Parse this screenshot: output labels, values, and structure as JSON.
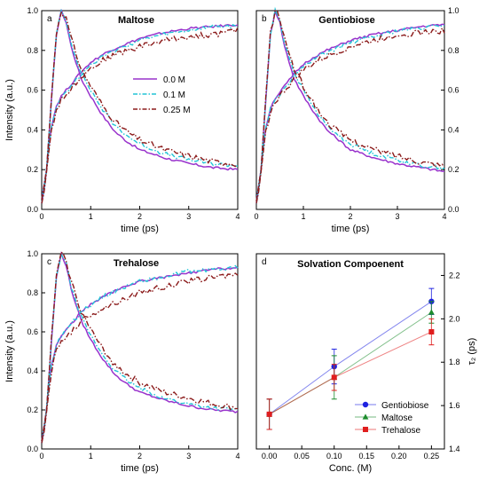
{
  "colors": {
    "m0": "#9932CC",
    "m01": "#22C4D6",
    "m025": "#8B1A1A",
    "gentiobiose": "#1E22E0",
    "maltose": "#1C8C2C",
    "trehalose": "#E01E1E"
  },
  "chart_data": [
    {
      "type": "line",
      "panel_label": "a",
      "title": "Maltose",
      "xlabel": "time (ps)",
      "ylabel": "Intensity (a.u.)",
      "xlim": [
        0,
        4
      ],
      "ylim": [
        0,
        1.0
      ],
      "xticks": [
        "0",
        "1",
        "2",
        "3",
        "4"
      ],
      "yticks": [
        "0.0",
        "0.2",
        "0.4",
        "0.6",
        "0.8",
        "1.0"
      ],
      "y_axis_side": "left",
      "legend": {
        "placement": "center-right",
        "entries": [
          "0.0 M",
          "0.1 M",
          "0.25 M"
        ]
      },
      "series": [
        {
          "name": "0.0 M",
          "style": "solid",
          "color_key": "m0",
          "decay_x": [
            0.0,
            0.1,
            0.2,
            0.3,
            0.4,
            0.5,
            0.6,
            0.8,
            1.0,
            1.25,
            1.5,
            1.75,
            2.0,
            2.5,
            3.0,
            3.5,
            4.0
          ],
          "decay_y": [
            0.05,
            0.2,
            0.55,
            0.88,
            1.0,
            0.94,
            0.82,
            0.66,
            0.57,
            0.47,
            0.39,
            0.34,
            0.3,
            0.26,
            0.23,
            0.21,
            0.2
          ],
          "rise_x": [
            0.0,
            0.05,
            0.1,
            0.15,
            0.2,
            0.3,
            0.4,
            0.5,
            0.6,
            0.8,
            1.0,
            1.25,
            1.5,
            2.0,
            2.5,
            3.0,
            3.5,
            4.0
          ],
          "rise_y": [
            0.03,
            0.1,
            0.2,
            0.32,
            0.42,
            0.52,
            0.57,
            0.6,
            0.63,
            0.69,
            0.74,
            0.78,
            0.81,
            0.86,
            0.89,
            0.91,
            0.92,
            0.93
          ]
        },
        {
          "name": "0.1 M",
          "style": "dashdot",
          "color_key": "m01",
          "decay_x": [
            0.0,
            0.1,
            0.2,
            0.3,
            0.4,
            0.5,
            0.6,
            0.8,
            1.0,
            1.25,
            1.5,
            1.75,
            2.0,
            2.5,
            3.0,
            3.5,
            4.0
          ],
          "decay_y": [
            0.05,
            0.2,
            0.55,
            0.88,
            1.0,
            0.95,
            0.84,
            0.69,
            0.6,
            0.5,
            0.42,
            0.37,
            0.33,
            0.28,
            0.25,
            0.23,
            0.22
          ],
          "rise_x": [
            0.0,
            0.05,
            0.1,
            0.15,
            0.2,
            0.3,
            0.4,
            0.5,
            0.6,
            0.8,
            1.0,
            1.25,
            1.5,
            2.0,
            2.5,
            3.0,
            3.5,
            4.0
          ],
          "rise_y": [
            0.03,
            0.1,
            0.2,
            0.32,
            0.42,
            0.52,
            0.56,
            0.59,
            0.62,
            0.68,
            0.73,
            0.77,
            0.8,
            0.85,
            0.88,
            0.9,
            0.92,
            0.92
          ]
        },
        {
          "name": "0.25 M",
          "style": "dashdot",
          "color_key": "m025",
          "decay_x": [
            0.0,
            0.1,
            0.2,
            0.3,
            0.4,
            0.5,
            0.6,
            0.8,
            1.0,
            1.25,
            1.5,
            1.75,
            2.0,
            2.5,
            3.0,
            3.5,
            4.0
          ],
          "decay_y": [
            0.05,
            0.2,
            0.56,
            0.89,
            1.0,
            0.96,
            0.86,
            0.71,
            0.62,
            0.52,
            0.44,
            0.39,
            0.35,
            0.3,
            0.27,
            0.24,
            0.23
          ],
          "rise_x": [
            0.0,
            0.05,
            0.1,
            0.15,
            0.2,
            0.3,
            0.4,
            0.5,
            0.6,
            0.8,
            1.0,
            1.25,
            1.5,
            2.0,
            2.5,
            3.0,
            3.5,
            4.0
          ],
          "rise_y": [
            0.03,
            0.09,
            0.19,
            0.3,
            0.4,
            0.5,
            0.55,
            0.58,
            0.61,
            0.67,
            0.71,
            0.75,
            0.78,
            0.82,
            0.85,
            0.87,
            0.88,
            0.9
          ]
        }
      ]
    },
    {
      "type": "line",
      "panel_label": "b",
      "title": "Gentiobiose",
      "xlabel": "time (ps)",
      "ylabel": "",
      "xlim": [
        0,
        4
      ],
      "ylim": [
        0,
        1.0
      ],
      "xticks": [
        "0",
        "1",
        "2",
        "3",
        "4"
      ],
      "yticks": [
        "0.0",
        "0.2",
        "0.4",
        "0.6",
        "0.8",
        "1.0"
      ],
      "y_axis_side": "right",
      "series": [
        {
          "name": "0.0 M",
          "style": "solid",
          "color_key": "m0",
          "decay_x": [
            0.0,
            0.1,
            0.2,
            0.3,
            0.4,
            0.5,
            0.6,
            0.8,
            1.0,
            1.25,
            1.5,
            1.75,
            2.0,
            2.5,
            3.0,
            3.5,
            4.0
          ],
          "decay_y": [
            0.04,
            0.2,
            0.55,
            0.88,
            1.0,
            0.94,
            0.82,
            0.66,
            0.57,
            0.48,
            0.4,
            0.35,
            0.3,
            0.26,
            0.23,
            0.21,
            0.19
          ],
          "rise_x": [
            0.0,
            0.05,
            0.1,
            0.15,
            0.2,
            0.3,
            0.4,
            0.5,
            0.6,
            0.8,
            1.0,
            1.25,
            1.5,
            2.0,
            2.5,
            3.0,
            3.5,
            4.0
          ],
          "rise_y": [
            0.03,
            0.1,
            0.2,
            0.31,
            0.41,
            0.51,
            0.56,
            0.59,
            0.62,
            0.68,
            0.73,
            0.77,
            0.8,
            0.85,
            0.88,
            0.9,
            0.92,
            0.93
          ]
        },
        {
          "name": "0.1 M",
          "style": "dashdot",
          "color_key": "m01",
          "decay_x": [
            0.0,
            0.1,
            0.2,
            0.3,
            0.4,
            0.5,
            0.6,
            0.8,
            1.0,
            1.25,
            1.5,
            1.75,
            2.0,
            2.5,
            3.0,
            3.5,
            4.0
          ],
          "decay_y": [
            0.04,
            0.2,
            0.55,
            0.88,
            1.0,
            0.95,
            0.84,
            0.69,
            0.6,
            0.5,
            0.42,
            0.37,
            0.33,
            0.28,
            0.25,
            0.22,
            0.21
          ],
          "rise_x": [
            0.0,
            0.05,
            0.1,
            0.15,
            0.2,
            0.3,
            0.4,
            0.5,
            0.6,
            0.8,
            1.0,
            1.25,
            1.5,
            2.0,
            2.5,
            3.0,
            3.5,
            4.0
          ],
          "rise_y": [
            0.03,
            0.1,
            0.2,
            0.31,
            0.41,
            0.51,
            0.55,
            0.58,
            0.61,
            0.67,
            0.72,
            0.76,
            0.79,
            0.84,
            0.87,
            0.9,
            0.91,
            0.93
          ]
        },
        {
          "name": "0.25 M",
          "style": "dashdot",
          "color_key": "m025",
          "decay_x": [
            0.0,
            0.1,
            0.2,
            0.3,
            0.4,
            0.5,
            0.6,
            0.8,
            1.0,
            1.25,
            1.5,
            1.75,
            2.0,
            2.5,
            3.0,
            3.5,
            4.0
          ],
          "decay_y": [
            0.04,
            0.2,
            0.56,
            0.89,
            1.0,
            0.96,
            0.86,
            0.71,
            0.62,
            0.52,
            0.44,
            0.39,
            0.35,
            0.3,
            0.27,
            0.24,
            0.22
          ],
          "rise_x": [
            0.0,
            0.05,
            0.1,
            0.15,
            0.2,
            0.3,
            0.4,
            0.5,
            0.6,
            0.8,
            1.0,
            1.25,
            1.5,
            2.0,
            2.5,
            3.0,
            3.5,
            4.0
          ],
          "rise_y": [
            0.03,
            0.09,
            0.19,
            0.29,
            0.39,
            0.49,
            0.54,
            0.57,
            0.6,
            0.65,
            0.7,
            0.74,
            0.77,
            0.82,
            0.85,
            0.88,
            0.89,
            0.9
          ]
        }
      ]
    },
    {
      "type": "line",
      "panel_label": "c",
      "title": "Trehalose",
      "xlabel": "time (ps)",
      "ylabel": "Intensity (a.u.)",
      "xlim": [
        0,
        4
      ],
      "ylim": [
        0,
        1.0
      ],
      "xticks": [
        "0",
        "1",
        "2",
        "3",
        "4"
      ],
      "yticks": [
        "0.0",
        "0.2",
        "0.4",
        "0.6",
        "0.8",
        "1.0"
      ],
      "y_axis_side": "left",
      "series": [
        {
          "name": "0.0 M",
          "style": "solid",
          "color_key": "m0",
          "decay_x": [
            0.0,
            0.1,
            0.2,
            0.3,
            0.4,
            0.5,
            0.6,
            0.8,
            1.0,
            1.25,
            1.5,
            1.75,
            2.0,
            2.5,
            3.0,
            3.5,
            4.0
          ],
          "decay_y": [
            0.04,
            0.2,
            0.55,
            0.88,
            1.0,
            0.94,
            0.82,
            0.66,
            0.56,
            0.46,
            0.38,
            0.33,
            0.29,
            0.25,
            0.22,
            0.2,
            0.19
          ],
          "rise_x": [
            0.0,
            0.05,
            0.1,
            0.15,
            0.2,
            0.3,
            0.4,
            0.5,
            0.6,
            0.8,
            1.0,
            1.25,
            1.5,
            2.0,
            2.5,
            3.0,
            3.5,
            4.0
          ],
          "rise_y": [
            0.03,
            0.1,
            0.21,
            0.33,
            0.43,
            0.53,
            0.58,
            0.61,
            0.64,
            0.7,
            0.74,
            0.78,
            0.81,
            0.86,
            0.88,
            0.9,
            0.92,
            0.93
          ]
        },
        {
          "name": "0.1 M",
          "style": "dashdot",
          "color_key": "m01",
          "decay_x": [
            0.0,
            0.1,
            0.2,
            0.3,
            0.4,
            0.5,
            0.6,
            0.8,
            1.0,
            1.25,
            1.5,
            1.75,
            2.0,
            2.5,
            3.0,
            3.5,
            4.0
          ],
          "decay_y": [
            0.04,
            0.2,
            0.55,
            0.88,
            1.0,
            0.95,
            0.83,
            0.68,
            0.58,
            0.48,
            0.4,
            0.35,
            0.31,
            0.26,
            0.23,
            0.21,
            0.2
          ],
          "rise_x": [
            0.0,
            0.05,
            0.1,
            0.15,
            0.2,
            0.3,
            0.4,
            0.5,
            0.6,
            0.8,
            1.0,
            1.25,
            1.5,
            2.0,
            2.5,
            3.0,
            3.5,
            4.0
          ],
          "rise_y": [
            0.03,
            0.1,
            0.21,
            0.33,
            0.43,
            0.53,
            0.58,
            0.61,
            0.64,
            0.7,
            0.74,
            0.78,
            0.81,
            0.86,
            0.88,
            0.91,
            0.92,
            0.93
          ]
        },
        {
          "name": "0.25 M",
          "style": "dashdot",
          "color_key": "m025",
          "decay_x": [
            0.0,
            0.1,
            0.2,
            0.3,
            0.4,
            0.5,
            0.6,
            0.8,
            1.0,
            1.25,
            1.5,
            1.75,
            2.0,
            2.5,
            3.0,
            3.5,
            4.0
          ],
          "decay_y": [
            0.04,
            0.2,
            0.56,
            0.89,
            1.0,
            0.96,
            0.86,
            0.71,
            0.61,
            0.51,
            0.43,
            0.38,
            0.34,
            0.29,
            0.26,
            0.23,
            0.21
          ],
          "rise_x": [
            0.0,
            0.05,
            0.1,
            0.15,
            0.2,
            0.3,
            0.4,
            0.5,
            0.6,
            0.8,
            1.0,
            1.25,
            1.5,
            2.0,
            2.5,
            3.0,
            3.5,
            4.0
          ],
          "rise_y": [
            0.03,
            0.09,
            0.19,
            0.3,
            0.4,
            0.5,
            0.55,
            0.58,
            0.6,
            0.65,
            0.69,
            0.72,
            0.75,
            0.8,
            0.83,
            0.86,
            0.88,
            0.9
          ]
        }
      ]
    },
    {
      "type": "scatter",
      "panel_label": "d",
      "title": "Solvation Compoenent",
      "xlabel": "Conc. (M)",
      "ylabel": "τ₂ (ps)",
      "xlim": [
        -0.02,
        0.27
      ],
      "ylim": [
        1.4,
        2.3
      ],
      "xticks": [
        0.0,
        0.05,
        0.1,
        0.15,
        0.2,
        0.25
      ],
      "xtick_labels": [
        "0.00",
        "0.05",
        "0.10",
        "0.15",
        "0.20",
        "0.25"
      ],
      "yticks": [
        1.4,
        1.6,
        1.8,
        2.0,
        2.2
      ],
      "ytick_labels": [
        "1.4",
        "1.6",
        "1.8",
        "2.0",
        "2.2"
      ],
      "y_axis_side": "right",
      "legend": {
        "placement": "bottom-right",
        "entries": [
          "Gentiobiose",
          "Maltose",
          "Trehalose"
        ]
      },
      "series": [
        {
          "name": "Gentiobiose",
          "marker": "circle",
          "color_key": "gentiobiose",
          "x": [
            0.0,
            0.1,
            0.25
          ],
          "y": [
            1.56,
            1.78,
            2.08
          ],
          "err": [
            0.07,
            0.08,
            0.06
          ]
        },
        {
          "name": "Maltose",
          "marker": "triangle",
          "color_key": "maltose",
          "x": [
            0.0,
            0.1,
            0.25
          ],
          "y": [
            1.56,
            1.73,
            2.03
          ],
          "err": [
            0.07,
            0.1,
            0.05
          ]
        },
        {
          "name": "Trehalose",
          "marker": "square",
          "color_key": "trehalose",
          "x": [
            0.0,
            0.1,
            0.25
          ],
          "y": [
            1.56,
            1.73,
            1.94
          ],
          "err": [
            0.07,
            0.06,
            0.06
          ]
        }
      ]
    }
  ]
}
